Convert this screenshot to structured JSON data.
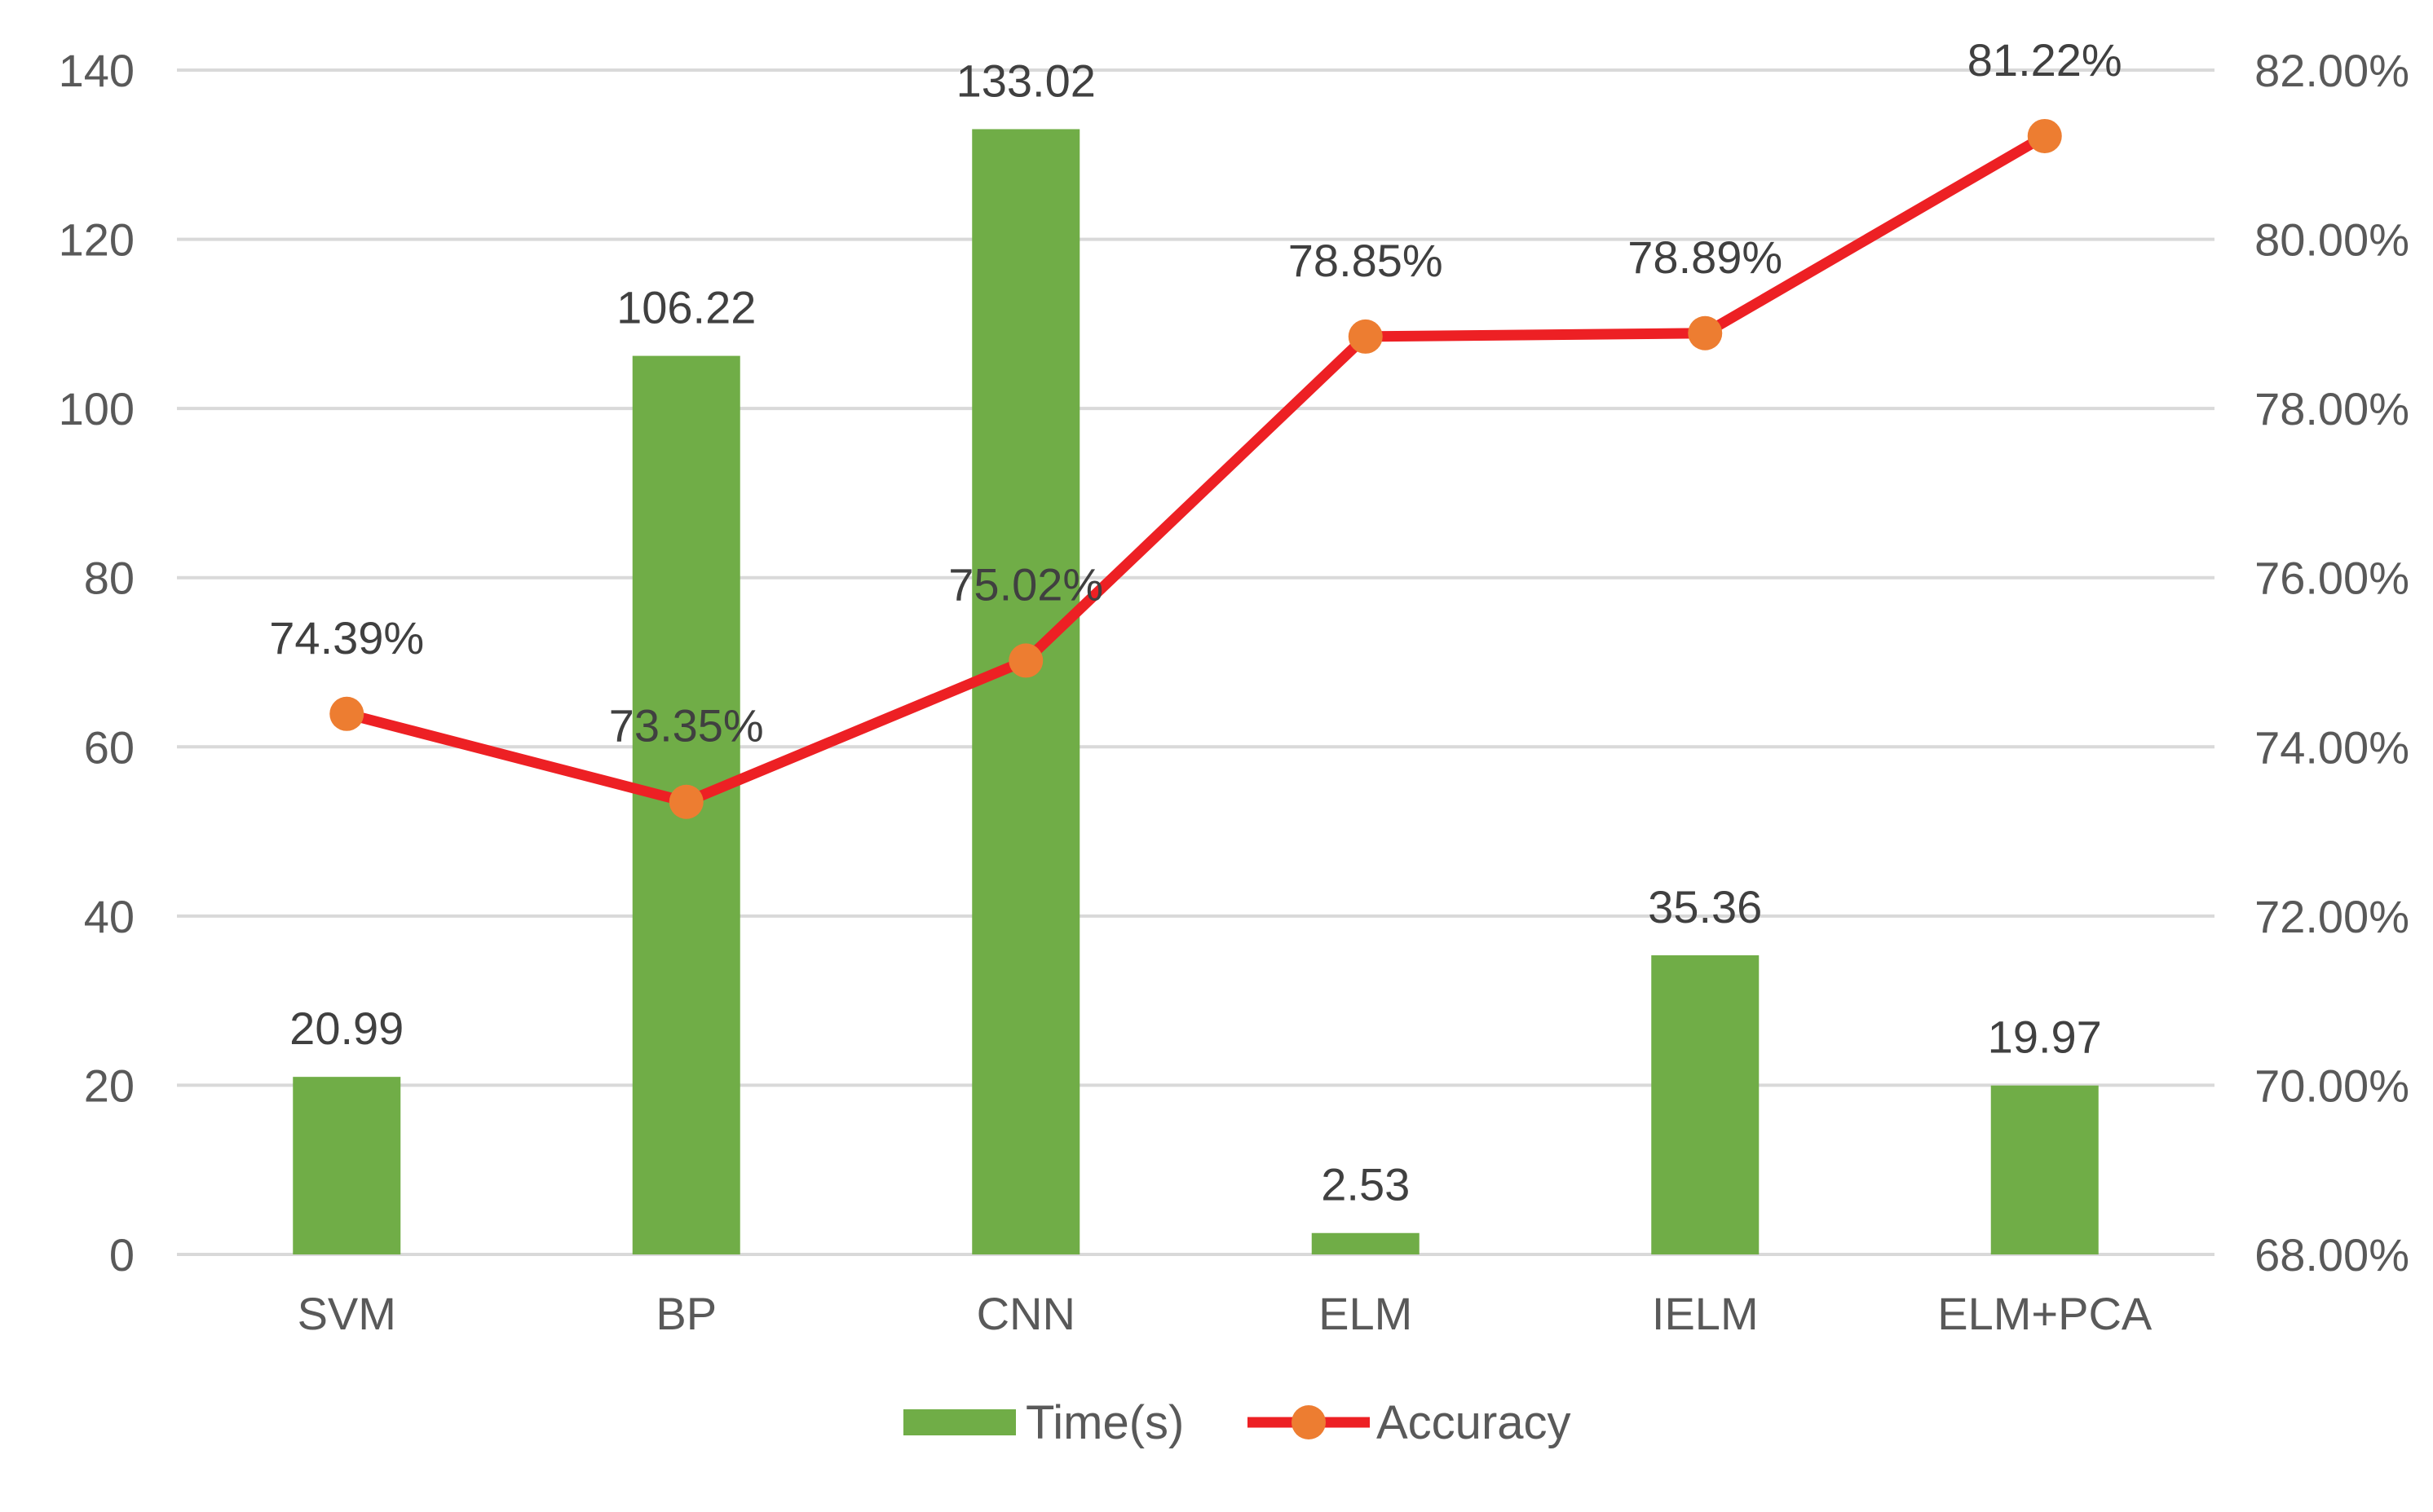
{
  "chart_data": {
    "type": "bar",
    "categories": [
      "SVM",
      "BP",
      "CNN",
      "ELM",
      "IELM",
      "ELM+PCA"
    ],
    "series": [
      {
        "name": "Time(s)",
        "type": "bar",
        "axis": "left",
        "color": "#70AD47",
        "values": [
          20.99,
          106.22,
          133.02,
          2.53,
          35.36,
          19.97
        ],
        "labels": [
          "20.99",
          "106.22",
          "133.02",
          "2.53",
          "35.36",
          "19.97"
        ]
      },
      {
        "name": "Accuracy",
        "type": "line",
        "axis": "right",
        "color": "#ED2024",
        "marker_color": "#ED7D31",
        "values": [
          74.39,
          73.35,
          75.02,
          78.85,
          78.89,
          81.22
        ],
        "labels": [
          "74.39%",
          "73.35%",
          "75.02%",
          "78.85%",
          "78.89%",
          "81.22%"
        ]
      }
    ],
    "left_axis": {
      "ylim": [
        0,
        140
      ],
      "ticks": [
        0,
        20,
        40,
        60,
        80,
        100,
        120,
        140
      ],
      "tick_labels": [
        "0",
        "20",
        "40",
        "60",
        "80",
        "100",
        "120",
        "140"
      ]
    },
    "right_axis": {
      "ylim": [
        68,
        82
      ],
      "ticks": [
        68,
        70,
        72,
        74,
        76,
        78,
        80,
        82
      ],
      "tick_labels": [
        "68.00%",
        "70.00%",
        "72.00%",
        "74.00%",
        "76.00%",
        "78.00%",
        "80.00%",
        "82.00%"
      ]
    },
    "grid": true,
    "legend": "bottom",
    "gridline_color": "#D9D9D9"
  }
}
